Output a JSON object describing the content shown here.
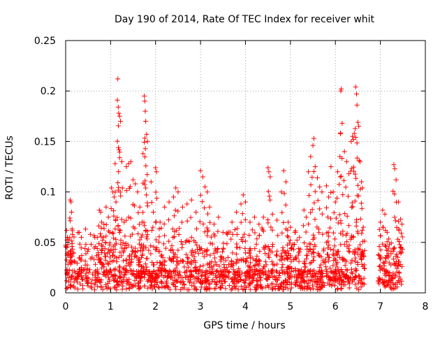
{
  "chart_data": {
    "type": "scatter",
    "title": "Day 190 of 2014, Rate Of TEC Index for receiver whit",
    "xlabel": "GPS time / hours",
    "ylabel": "ROTI / TECUs",
    "xlim": [
      0,
      8
    ],
    "ylim": [
      0,
      0.25
    ],
    "x_ticks": [
      "0",
      "1",
      "2",
      "3",
      "4",
      "5",
      "6",
      "7",
      "8"
    ],
    "y_ticks": [
      "0",
      "0.05",
      "0.1",
      "0.15",
      "0.2",
      "0.25"
    ],
    "grid": true,
    "marker": "plus",
    "series": [
      {
        "name": "ROTI",
        "color": "#ff0000",
        "points": [
          [
            0.02,
            0.062
          ],
          [
            0.04,
            0.055
          ],
          [
            0.05,
            0.048
          ],
          [
            0.1,
            0.092
          ],
          [
            0.12,
            0.09
          ],
          [
            0.13,
            0.08
          ],
          [
            0.15,
            0.058
          ],
          [
            0.3,
            0.06
          ],
          [
            0.35,
            0.055
          ],
          [
            0.45,
            0.048
          ],
          [
            0.55,
            0.058
          ],
          [
            0.65,
            0.055
          ],
          [
            0.75,
            0.082
          ],
          [
            0.78,
            0.08
          ],
          [
            0.8,
            0.07
          ],
          [
            0.85,
            0.068
          ],
          [
            0.9,
            0.085
          ],
          [
            0.95,
            0.075
          ],
          [
            0.98,
            0.06
          ],
          [
            1.02,
            0.104
          ],
          [
            1.05,
            0.1
          ],
          [
            1.08,
            0.095
          ],
          [
            1.1,
            0.128
          ],
          [
            1.12,
            0.09
          ],
          [
            1.15,
            0.191
          ],
          [
            1.16,
            0.212
          ],
          [
            1.17,
            0.184
          ],
          [
            1.18,
            0.178
          ],
          [
            1.2,
            0.175
          ],
          [
            1.22,
            0.17
          ],
          [
            1.25,
            0.13
          ],
          [
            1.3,
            0.07
          ],
          [
            1.35,
            0.125
          ],
          [
            1.4,
            0.128
          ],
          [
            1.45,
            0.13
          ],
          [
            1.5,
            0.112
          ],
          [
            1.55,
            0.108
          ],
          [
            1.6,
            0.1
          ],
          [
            1.65,
            0.085
          ],
          [
            1.7,
            0.07
          ],
          [
            1.72,
            0.138
          ],
          [
            1.75,
            0.195
          ],
          [
            1.76,
            0.19
          ],
          [
            1.77,
            0.18
          ],
          [
            1.78,
            0.17
          ],
          [
            1.8,
            0.157
          ],
          [
            1.82,
            0.15
          ],
          [
            1.9,
            0.11
          ],
          [
            1.95,
            0.08
          ],
          [
            2.0,
            0.124
          ],
          [
            2.02,
            0.12
          ],
          [
            2.1,
            0.07
          ],
          [
            2.2,
            0.085
          ],
          [
            2.3,
            0.09
          ],
          [
            2.4,
            0.095
          ],
          [
            2.45,
            0.104
          ],
          [
            2.5,
            0.1
          ],
          [
            2.6,
            0.085
          ],
          [
            2.7,
            0.088
          ],
          [
            2.8,
            0.092
          ],
          [
            2.9,
            0.08
          ],
          [
            3.0,
            0.121
          ],
          [
            3.05,
            0.115
          ],
          [
            3.1,
            0.105
          ],
          [
            3.15,
            0.1
          ],
          [
            3.2,
            0.085
          ],
          [
            3.3,
            0.068
          ],
          [
            3.4,
            0.075
          ],
          [
            3.5,
            0.06
          ],
          [
            3.6,
            0.058
          ],
          [
            3.7,
            0.07
          ],
          [
            3.8,
            0.08
          ],
          [
            3.9,
            0.088
          ],
          [
            3.95,
            0.097
          ],
          [
            4.0,
            0.09
          ],
          [
            4.1,
            0.07
          ],
          [
            4.2,
            0.075
          ],
          [
            4.3,
            0.068
          ],
          [
            4.4,
            0.075
          ],
          [
            4.5,
            0.124
          ],
          [
            4.52,
            0.12
          ],
          [
            4.55,
            0.115
          ],
          [
            4.6,
            0.078
          ],
          [
            4.7,
            0.072
          ],
          [
            4.8,
            0.1
          ],
          [
            4.85,
            0.121
          ],
          [
            4.9,
            0.11
          ],
          [
            4.95,
            0.07
          ],
          [
            5.0,
            0.065
          ],
          [
            5.1,
            0.06
          ],
          [
            5.2,
            0.055
          ],
          [
            5.3,
            0.082
          ],
          [
            5.35,
            0.075
          ],
          [
            5.4,
            0.12
          ],
          [
            5.45,
            0.135
          ],
          [
            5.5,
            0.146
          ],
          [
            5.52,
            0.153
          ],
          [
            5.55,
            0.125
          ],
          [
            5.6,
            0.114
          ],
          [
            5.65,
            0.105
          ],
          [
            5.7,
            0.1
          ],
          [
            5.8,
            0.106
          ],
          [
            5.85,
            0.095
          ],
          [
            5.9,
            0.125
          ],
          [
            5.95,
            0.1
          ],
          [
            6.0,
            0.09
          ],
          [
            6.05,
            0.12
          ],
          [
            6.1,
            0.135
          ],
          [
            6.12,
            0.2
          ],
          [
            6.13,
            0.202
          ],
          [
            6.15,
            0.168
          ],
          [
            6.2,
            0.14
          ],
          [
            6.25,
            0.13
          ],
          [
            6.3,
            0.118
          ],
          [
            6.35,
            0.15
          ],
          [
            6.38,
            0.155
          ],
          [
            6.4,
            0.152
          ],
          [
            6.42,
            0.158
          ],
          [
            6.45,
            0.204
          ],
          [
            6.47,
            0.197
          ],
          [
            6.48,
            0.186
          ],
          [
            6.5,
            0.169
          ],
          [
            6.52,
            0.165
          ],
          [
            6.55,
            0.13
          ],
          [
            6.58,
            0.11
          ],
          [
            6.6,
            0.104
          ],
          [
            6.62,
            0.065
          ],
          [
            6.65,
            0.042
          ],
          [
            7.0,
            0.07
          ],
          [
            7.05,
            0.082
          ],
          [
            7.1,
            0.078
          ],
          [
            7.15,
            0.06
          ],
          [
            7.2,
            0.048
          ],
          [
            7.3,
            0.127
          ],
          [
            7.32,
            0.123
          ],
          [
            7.35,
            0.112
          ],
          [
            7.4,
            0.09
          ],
          [
            7.45,
            0.073
          ],
          [
            7.48,
            0.068
          ]
        ]
      }
    ]
  }
}
